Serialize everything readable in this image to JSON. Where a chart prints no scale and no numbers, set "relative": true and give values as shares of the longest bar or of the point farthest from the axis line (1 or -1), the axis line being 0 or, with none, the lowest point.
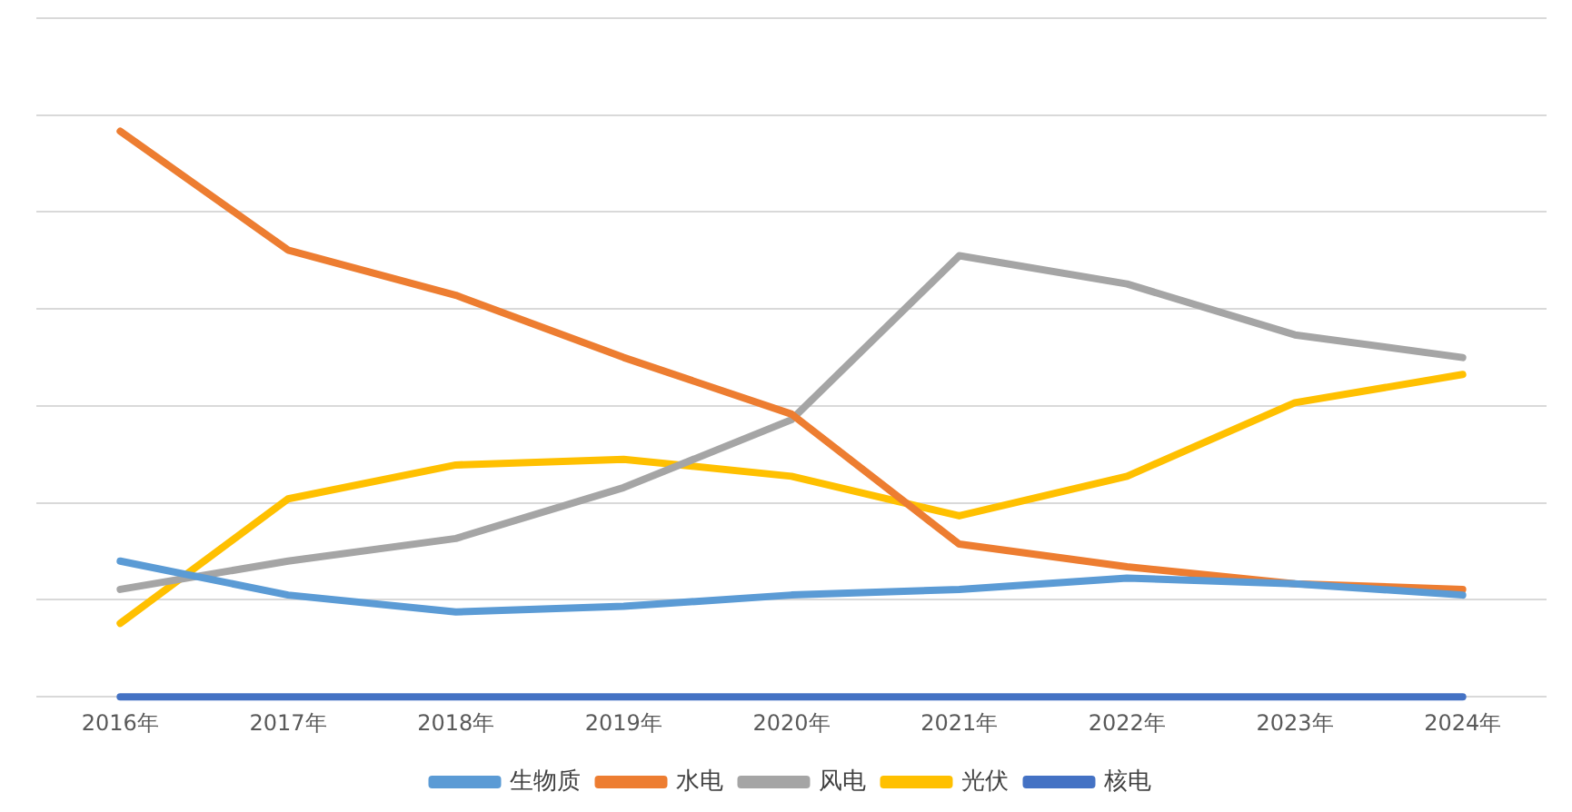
{
  "chart_data": {
    "type": "line",
    "relative": true,
    "grid": "y",
    "legend": "bottom",
    "marker": "none",
    "line_style": "solid",
    "categories": [
      "2016年",
      "2017年",
      "2018年",
      "2019年",
      "2020年",
      "2021年",
      "2022年",
      "2023年",
      "2024年"
    ],
    "series": [
      {
        "name": "生物质",
        "color": "#5b9bd5",
        "values": [
          0.24,
          0.18,
          0.15,
          0.16,
          0.18,
          0.19,
          0.21,
          0.2,
          0.18
        ]
      },
      {
        "name": "水电",
        "color": "#ed7d31",
        "values": [
          1,
          0.79,
          0.71,
          0.6,
          0.5,
          0.27,
          0.23,
          0.2,
          0.19
        ]
      },
      {
        "name": "风电",
        "color": "#a5a5a5",
        "values": [
          0.19,
          0.24,
          0.28,
          0.37,
          0.49,
          0.78,
          0.73,
          0.64,
          0.6
        ]
      },
      {
        "name": "光伏",
        "color": "#ffc000",
        "values": [
          0.13,
          0.35,
          0.41,
          0.42,
          0.39,
          0.32,
          0.39,
          0.52,
          0.57
        ]
      },
      {
        "name": "核电",
        "color": "#4472c4",
        "values": [
          0,
          0,
          0,
          0,
          0,
          0,
          0,
          0,
          0
        ]
      }
    ]
  }
}
